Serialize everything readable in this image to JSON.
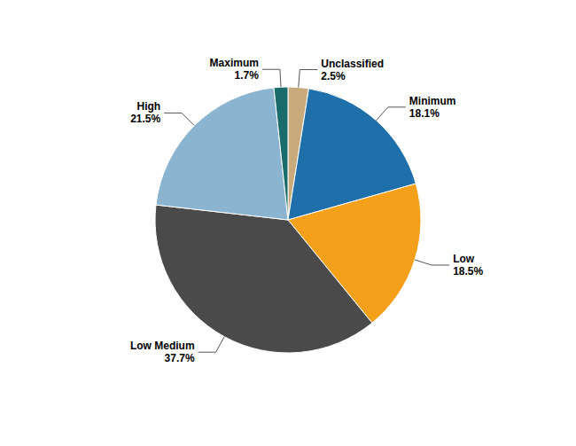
{
  "chart_data": {
    "type": "pie",
    "categories": [
      "Unclassified",
      "Minimum",
      "Low",
      "Low Medium",
      "High",
      "Maximum"
    ],
    "values": [
      2.5,
      18.1,
      18.5,
      37.7,
      21.5,
      1.7
    ],
    "value_labels": [
      "2.5%",
      "18.1%",
      "18.5%",
      "37.7%",
      "21.5%",
      "1.7%"
    ],
    "colors": [
      "#C8AA7C",
      "#1F6FAA",
      "#F5A01A",
      "#4A4A4A",
      "#8BB4D0",
      "#1A6B6B"
    ]
  }
}
